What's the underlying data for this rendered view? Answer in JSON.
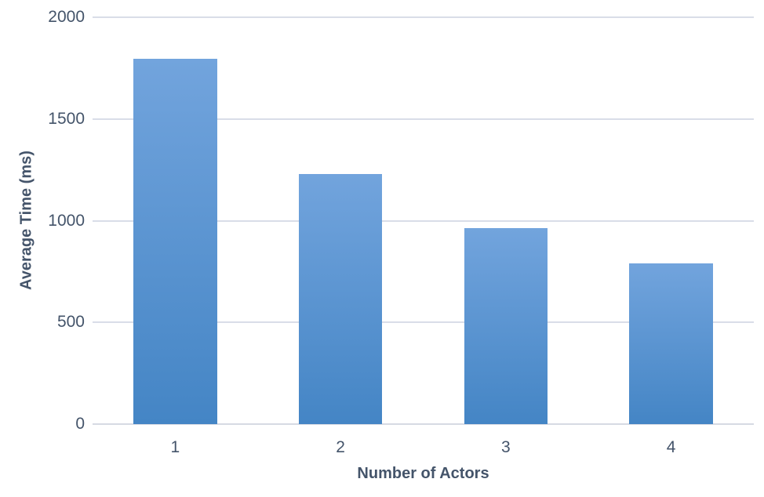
{
  "chart_data": {
    "type": "bar",
    "title": "",
    "xlabel": "Number of Actors",
    "ylabel": "Average Time (ms)",
    "categories": [
      "1",
      "2",
      "3",
      "4"
    ],
    "values": [
      1795,
      1230,
      965,
      790
    ],
    "series": [
      {
        "name": "Average Time (ms)",
        "values": [
          1795,
          1230,
          965,
          790
        ]
      }
    ],
    "ylim": [
      0,
      2000
    ],
    "yticks": [
      0,
      500,
      1000,
      1500,
      2000
    ],
    "grid": "horizontal-only",
    "legend": "none",
    "bar_width_fraction": 0.505,
    "colors": {
      "bar_gradient_top": "#72A4DD",
      "bar_gradient_bottom": "#4485C5",
      "gridline": "#D9DDE8",
      "baseline": "#D6DAE3",
      "text": "#44546A",
      "background": "#FFFFFF"
    }
  }
}
